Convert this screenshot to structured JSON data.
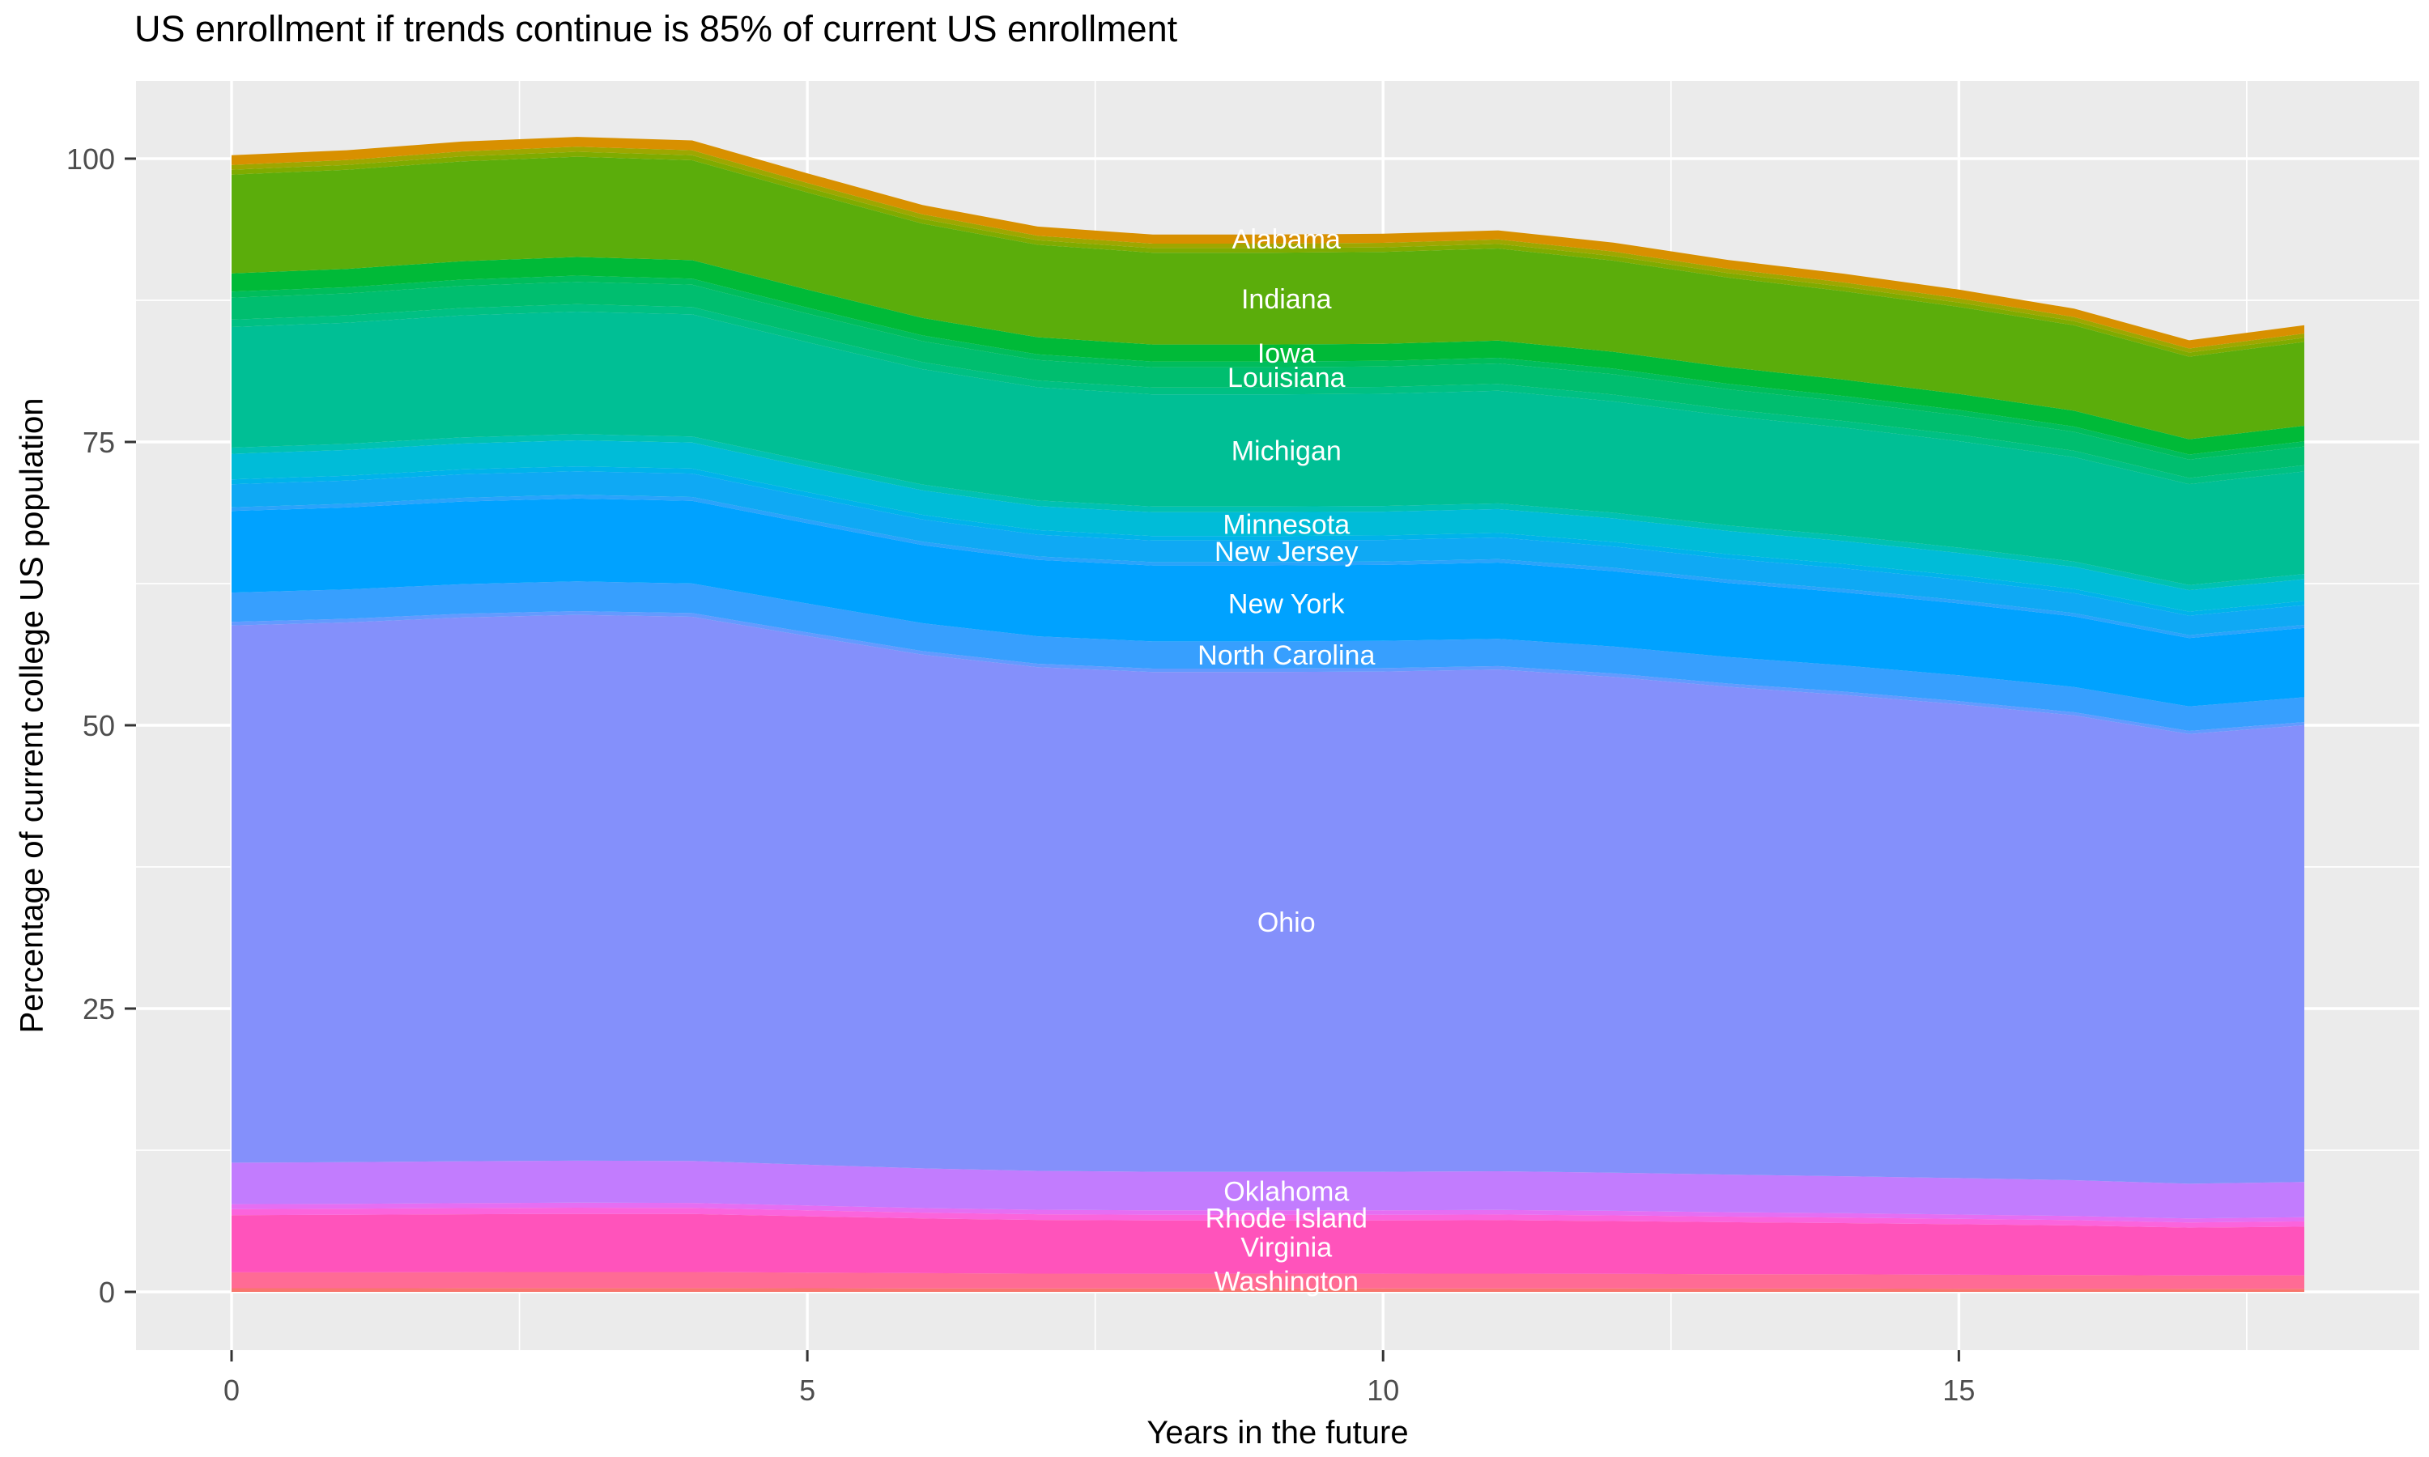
{
  "title": "US enrollment if trends continue is 85% of current US enrollment",
  "axes": {
    "x": {
      "title": "Years in the future",
      "tick_labels": [
        "0",
        "5",
        "10",
        "15"
      ],
      "tick_values": [
        0,
        5,
        10,
        15
      ],
      "minor_tick_values": [
        2.5,
        7.5,
        12.5,
        17.5
      ],
      "range": [
        0,
        18
      ]
    },
    "y": {
      "title": "Percentage of current college US population",
      "tick_labels": [
        "0",
        "25",
        "50",
        "75",
        "100"
      ],
      "tick_values": [
        0,
        25,
        50,
        75,
        100
      ],
      "minor_tick_values": [
        12.5,
        37.5,
        62.5,
        87.5
      ],
      "range": [
        0,
        102
      ]
    }
  },
  "style": {
    "panel_bg": "#EBEBEB",
    "grid_color": "#FFFFFF",
    "tick_mark_color": "#333333",
    "tick_text_color": "#4D4D4D",
    "area_label_color": "#FFFFFF",
    "title_color": "#000000"
  },
  "chart_data": {
    "type": "area",
    "stacked": true,
    "order": "top-to-bottom",
    "x": [
      0,
      1,
      2,
      3,
      4,
      5,
      6,
      7,
      8,
      9,
      10,
      11,
      12,
      13,
      14,
      15,
      16,
      17,
      18
    ],
    "label_x": 9.16,
    "series": [
      {
        "name": "alabama",
        "label": "Alabama",
        "color": "#D89000",
        "values": [
          0.86,
          0.86,
          0.87,
          0.87,
          0.87,
          0.85,
          0.82,
          0.81,
          0.8,
          0.8,
          0.8,
          0.8,
          0.79,
          0.78,
          0.77,
          0.76,
          0.74,
          0.72,
          0.73
        ]
      },
      {
        "name": "unlabeled-1",
        "label": "",
        "color": "#9EA700",
        "values": [
          0.43,
          0.43,
          0.44,
          0.44,
          0.44,
          0.42,
          0.41,
          0.4,
          0.4,
          0.4,
          0.4,
          0.4,
          0.4,
          0.39,
          0.39,
          0.38,
          0.37,
          0.36,
          0.37
        ]
      },
      {
        "name": "unlabeled-2",
        "label": "",
        "color": "#7FAB00",
        "values": [
          0.43,
          0.43,
          0.44,
          0.44,
          0.44,
          0.42,
          0.41,
          0.4,
          0.4,
          0.4,
          0.4,
          0.4,
          0.4,
          0.39,
          0.39,
          0.38,
          0.37,
          0.36,
          0.37
        ]
      },
      {
        "name": "indiana",
        "label": "Indiana",
        "color": "#5BAD0B",
        "values": [
          8.71,
          8.75,
          8.81,
          8.85,
          8.82,
          8.57,
          8.33,
          8.16,
          8.1,
          8.1,
          8.11,
          8.13,
          8.04,
          7.91,
          7.8,
          7.68,
          7.53,
          7.29,
          7.4
        ]
      },
      {
        "name": "iowa",
        "label": "Iowa",
        "color": "#00BA38",
        "values": [
          1.61,
          1.62,
          1.63,
          1.64,
          1.63,
          1.59,
          1.54,
          1.51,
          1.5,
          1.5,
          1.5,
          1.51,
          1.49,
          1.46,
          1.44,
          1.42,
          1.4,
          1.35,
          1.37
        ]
      },
      {
        "name": "unlabeled-3",
        "label": "",
        "color": "#00BD5C",
        "values": [
          0.54,
          0.54,
          0.54,
          0.55,
          0.54,
          0.53,
          0.51,
          0.5,
          0.5,
          0.5,
          0.5,
          0.5,
          0.5,
          0.49,
          0.48,
          0.47,
          0.47,
          0.45,
          0.46
        ]
      },
      {
        "name": "louisiana",
        "label": "Louisiana",
        "color": "#00BE6F",
        "values": [
          1.94,
          1.94,
          1.96,
          1.97,
          1.96,
          1.9,
          1.85,
          1.81,
          1.8,
          1.8,
          1.8,
          1.81,
          1.79,
          1.76,
          1.73,
          1.71,
          1.67,
          1.62,
          1.65
        ]
      },
      {
        "name": "unlabeled-4",
        "label": "",
        "color": "#00C083",
        "values": [
          0.65,
          0.65,
          0.65,
          0.66,
          0.65,
          0.63,
          0.62,
          0.6,
          0.6,
          0.6,
          0.6,
          0.6,
          0.6,
          0.59,
          0.58,
          0.57,
          0.56,
          0.54,
          0.55
        ]
      },
      {
        "name": "michigan",
        "label": "Michigan",
        "color": "#00BF95",
        "values": [
          10.64,
          10.69,
          10.77,
          10.81,
          10.78,
          10.47,
          10.18,
          9.98,
          9.9,
          9.9,
          9.91,
          9.94,
          9.82,
          9.66,
          9.53,
          9.39,
          9.21,
          8.91,
          9.05
        ]
      },
      {
        "name": "unlabeled-5",
        "label": "",
        "color": "#00C1B2",
        "values": [
          0.54,
          0.54,
          0.54,
          0.55,
          0.54,
          0.53,
          0.51,
          0.5,
          0.5,
          0.5,
          0.5,
          0.5,
          0.5,
          0.49,
          0.48,
          0.47,
          0.47,
          0.45,
          0.46
        ]
      },
      {
        "name": "minnesota",
        "label": "Minnesota",
        "color": "#00BCD8",
        "values": [
          2.26,
          2.27,
          2.28,
          2.29,
          2.29,
          2.22,
          2.16,
          2.12,
          2.1,
          2.1,
          2.1,
          2.11,
          2.08,
          2.05,
          2.02,
          1.99,
          1.95,
          1.89,
          1.92
        ]
      },
      {
        "name": "unlabeled-6",
        "label": "",
        "color": "#00B3EA",
        "values": [
          0.43,
          0.43,
          0.44,
          0.44,
          0.44,
          0.42,
          0.41,
          0.4,
          0.4,
          0.4,
          0.4,
          0.4,
          0.4,
          0.39,
          0.39,
          0.38,
          0.37,
          0.36,
          0.37
        ]
      },
      {
        "name": "new-jersey",
        "label": "New Jersey",
        "color": "#0FA9F4",
        "values": [
          2.04,
          2.05,
          2.07,
          2.07,
          2.07,
          2.01,
          1.95,
          1.92,
          1.9,
          1.9,
          1.9,
          1.91,
          1.88,
          1.85,
          1.83,
          1.8,
          1.77,
          1.71,
          1.74
        ]
      },
      {
        "name": "unlabeled-7",
        "label": "",
        "color": "#2AA3FB",
        "values": [
          0.32,
          0.32,
          0.33,
          0.33,
          0.33,
          0.32,
          0.31,
          0.3,
          0.3,
          0.3,
          0.3,
          0.3,
          0.3,
          0.29,
          0.29,
          0.28,
          0.28,
          0.27,
          0.27
        ]
      },
      {
        "name": "new-york",
        "label": "New York",
        "color": "#00A2FF",
        "values": [
          7.2,
          7.24,
          7.29,
          7.32,
          7.3,
          7.09,
          6.89,
          6.75,
          6.7,
          6.7,
          6.71,
          6.73,
          6.65,
          6.54,
          6.45,
          6.35,
          6.23,
          6.03,
          6.12
        ]
      },
      {
        "name": "north-carolina",
        "label": "North Carolina",
        "color": "#379FFE",
        "values": [
          2.58,
          2.59,
          2.61,
          2.62,
          2.61,
          2.54,
          2.47,
          2.42,
          2.4,
          2.4,
          2.4,
          2.41,
          2.38,
          2.34,
          2.31,
          2.28,
          2.23,
          2.16,
          2.19
        ]
      },
      {
        "name": "unlabeled-8",
        "label": "",
        "color": "#639AFF",
        "values": [
          0.32,
          0.32,
          0.33,
          0.33,
          0.33,
          0.32,
          0.31,
          0.3,
          0.3,
          0.3,
          0.3,
          0.3,
          0.3,
          0.29,
          0.29,
          0.28,
          0.28,
          0.27,
          0.27
        ]
      },
      {
        "name": "ohio",
        "label": "Ohio",
        "color": "#8490FB",
        "values": [
          47.41,
          47.63,
          47.98,
          48.16,
          48.02,
          46.66,
          45.33,
          44.45,
          44.1,
          44.1,
          44.14,
          44.28,
          43.75,
          43.04,
          42.47,
          41.81,
          41.01,
          39.69,
          40.31
        ]
      },
      {
        "name": "oklahoma",
        "label": "Oklahoma",
        "color": "#C27CFE",
        "values": [
          3.66,
          3.67,
          3.7,
          3.71,
          3.7,
          3.6,
          3.5,
          3.43,
          3.4,
          3.4,
          3.4,
          3.41,
          3.37,
          3.32,
          3.27,
          3.22,
          3.16,
          3.06,
          3.11
        ]
      },
      {
        "name": "unlabeled-9",
        "label": "",
        "color": "#E56EF3",
        "values": [
          0.43,
          0.43,
          0.44,
          0.44,
          0.44,
          0.42,
          0.41,
          0.4,
          0.4,
          0.4,
          0.4,
          0.4,
          0.4,
          0.39,
          0.39,
          0.38,
          0.37,
          0.36,
          0.37
        ]
      },
      {
        "name": "rhode-island",
        "label": "Rhode Island",
        "color": "#FB64DC",
        "values": [
          0.54,
          0.54,
          0.54,
          0.55,
          0.54,
          0.53,
          0.51,
          0.5,
          0.5,
          0.5,
          0.5,
          0.5,
          0.5,
          0.49,
          0.48,
          0.47,
          0.47,
          0.45,
          0.46
        ]
      },
      {
        "name": "virginia",
        "label": "Virginia",
        "color": "#FF53BB",
        "values": [
          5.05,
          5.08,
          5.11,
          5.13,
          5.12,
          4.97,
          4.83,
          4.74,
          4.7,
          4.7,
          4.7,
          4.72,
          4.66,
          4.59,
          4.53,
          4.46,
          4.37,
          4.23,
          4.3
        ]
      },
      {
        "name": "washington",
        "label": "Washington",
        "color": "#FF6B95",
        "values": [
          1.4,
          1.4,
          1.41,
          1.42,
          1.42,
          1.38,
          1.34,
          1.31,
          1.3,
          1.3,
          1.3,
          1.31,
          1.29,
          1.27,
          1.25,
          1.23,
          1.21,
          1.17,
          1.19
        ]
      },
      {
        "name": "unlabeled-10",
        "label": "",
        "color": "#F8766D",
        "values": [
          0.32,
          0.32,
          0.33,
          0.33,
          0.33,
          0.32,
          0.31,
          0.3,
          0.3,
          0.3,
          0.3,
          0.3,
          0.3,
          0.29,
          0.29,
          0.28,
          0.28,
          0.27,
          0.27
        ]
      }
    ]
  }
}
